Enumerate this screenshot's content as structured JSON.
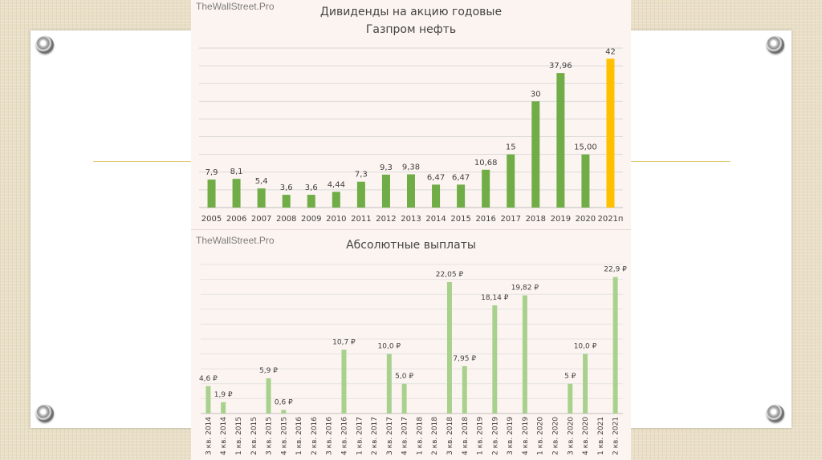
{
  "watermark": "TheWallStreet.Pro",
  "colors": {
    "bar_green": "#70ad47",
    "bar_forecast": "#ffc000",
    "bar_light": "#a9d18e",
    "grid": "#d9d9d9"
  },
  "chart_data": [
    {
      "type": "bar",
      "title": "Дивиденды на акцию годовые Газпром нефть",
      "title_line1": "Дивиденды на акцию годовые",
      "title_line2": "Газпром нефть",
      "xlabel": "",
      "ylabel": "",
      "ylim": [
        0,
        45
      ],
      "grid": true,
      "categories": [
        "2005",
        "2006",
        "2007",
        "2008",
        "2009",
        "2010",
        "2011",
        "2012",
        "2013",
        "2014",
        "2015",
        "2016",
        "2017",
        "2018",
        "2019",
        "2020",
        "2021п"
      ],
      "values": [
        7.9,
        8.1,
        5.4,
        3.6,
        3.6,
        4.44,
        7.3,
        9.3,
        9.38,
        6.47,
        6.47,
        10.68,
        15,
        30,
        37.96,
        15.0,
        42
      ],
      "labels": [
        "7,9",
        "8,1",
        "5,4",
        "3,6",
        "3,6",
        "4,44",
        "7,3",
        "9,3",
        "9,38",
        "6,47",
        "6,47",
        "10,68",
        "15",
        "30",
        "37,96",
        "15,00",
        "42"
      ],
      "forecast": [
        false,
        false,
        false,
        false,
        false,
        false,
        false,
        false,
        false,
        false,
        false,
        false,
        false,
        false,
        false,
        false,
        true
      ]
    },
    {
      "type": "bar",
      "title": "Абсолютные выплаты",
      "xlabel": "",
      "ylabel": "",
      "ylim": [
        0,
        25
      ],
      "grid": true,
      "categories": [
        "3 кв. 2014",
        "4 кв. 2014",
        "1 кв. 2015",
        "2 кв. 2015",
        "3 кв. 2015",
        "4 кв. 2015",
        "1 кв. 2016",
        "2 кв. 2016",
        "3 кв. 2016",
        "4 кв. 2016",
        "1 кв. 2017",
        "2 кв. 2017",
        "3 кв. 2017",
        "4 кв. 2017",
        "1 кв. 2018",
        "2 кв. 2018",
        "3 кв. 2018",
        "4 кв. 2018",
        "1 кв. 2019",
        "2 кв. 2019",
        "3 кв. 2019",
        "4 кв. 2019",
        "1 кв. 2020",
        "2 кв. 2020",
        "3 кв. 2020",
        "4 кв. 2020",
        "1 кв. 2021",
        "2 кв. 2021"
      ],
      "values": [
        4.6,
        1.9,
        null,
        null,
        5.9,
        0.6,
        null,
        null,
        null,
        10.7,
        null,
        null,
        10.0,
        5.0,
        null,
        null,
        22.05,
        7.95,
        null,
        18.14,
        null,
        19.82,
        null,
        null,
        5,
        10.0,
        null,
        22.9
      ],
      "labels": [
        "4,6 ₽",
        "1,9 ₽",
        "",
        "",
        "5,9 ₽",
        "0,6 ₽",
        "",
        "",
        "",
        "10,7 ₽",
        "",
        "",
        "10,0 ₽",
        "5,0 ₽",
        "",
        "",
        "22,05 ₽",
        "7,95 ₽",
        "",
        "18,14 ₽",
        "",
        "19,82 ₽",
        "",
        "",
        "5 ₽",
        "10,0 ₽",
        "",
        "22,9 ₽"
      ]
    }
  ]
}
